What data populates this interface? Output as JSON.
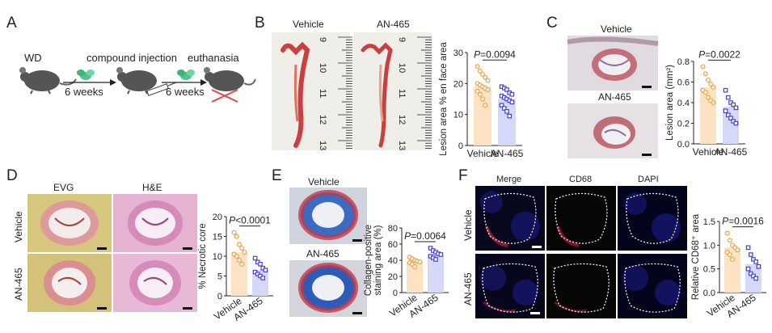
{
  "panels": {
    "A": {
      "letter": "A",
      "wd": "WD",
      "compound": "compound injection",
      "euthanasia": "euthanasia",
      "weeks1": "6 weeks",
      "weeks2": "6 weeks"
    },
    "B": {
      "letter": "B",
      "vehicle": "Vehicle",
      "an465": "AN-465",
      "ruler_left": [
        "9",
        "10",
        "11",
        "12",
        "13"
      ],
      "ruler_right": [
        "9",
        "10",
        "11",
        "12",
        "13"
      ]
    },
    "C": {
      "letter": "C",
      "vehicle": "Vehicle",
      "an465": "AN-465"
    },
    "D": {
      "letter": "D",
      "evg": "EVG",
      "he": "H&E",
      "vehicle": "Vehicle",
      "an465": "AN-465"
    },
    "E": {
      "letter": "E",
      "vehicle": "Vehicle",
      "an465": "AN-465"
    },
    "F": {
      "letter": "F",
      "merge": "Merge",
      "cd68": "CD68",
      "dapi": "DAPI",
      "vehicle": "Vehicle",
      "an465": "AN-465"
    }
  },
  "colors": {
    "vehicle_bar": "#fde3c4",
    "vehicle_point": "#f0a040",
    "an465_bar": "#d6d8fa",
    "an465_point": "#4444cc"
  },
  "chart_data": [
    {
      "id": "B",
      "type": "bar",
      "categories": [
        "Vehicle",
        "AN-465"
      ],
      "values": [
        19,
        15
      ],
      "points": [
        [
          25.5,
          24,
          23,
          22,
          21,
          20,
          19.5,
          19,
          18.5,
          18,
          17.5,
          16.5,
          15,
          13
        ],
        [
          19,
          18.5,
          18,
          17,
          16.5,
          16,
          15.5,
          15,
          14.5,
          14,
          13,
          12,
          11,
          9.5
        ]
      ],
      "ylabel": "Lesion area % en face area",
      "ylim": [
        0,
        30
      ],
      "yticks": [
        "0",
        "10",
        "20",
        "30"
      ],
      "pvalue": "P=0.0094"
    },
    {
      "id": "C",
      "type": "bar",
      "categories": [
        "Vehicle",
        "AN-465"
      ],
      "values": [
        0.55,
        0.36
      ],
      "points": [
        [
          0.75,
          0.68,
          0.62,
          0.58,
          0.55,
          0.52,
          0.5,
          0.45,
          0.42,
          0.4
        ],
        [
          0.52,
          0.45,
          0.4,
          0.38,
          0.35,
          0.32,
          0.28,
          0.25,
          0.22,
          0.2
        ]
      ],
      "ylabel": "Lesion area (mm²)",
      "ylim": [
        0,
        0.8
      ],
      "yticks": [
        "0.0",
        "0.2",
        "0.4",
        "0.6",
        "0.8"
      ],
      "pvalue": "P=0.0022"
    },
    {
      "id": "D",
      "type": "bar",
      "categories": [
        "Vehicle",
        "AN-465"
      ],
      "values": [
        11,
        6.5
      ],
      "points": [
        [
          16,
          15,
          13,
          12,
          11,
          10.5,
          10,
          9,
          8
        ],
        [
          9.5,
          8.5,
          8,
          7,
          6.5,
          6,
          5.5,
          5,
          4.5
        ]
      ],
      "ylabel": "% Necrotic core",
      "ylim": [
        0,
        20
      ],
      "yticks": [
        "0",
        "5",
        "10",
        "15",
        "20"
      ],
      "pvalue": "P<0.0001"
    },
    {
      "id": "E",
      "type": "bar",
      "categories": [
        "Vehicle",
        "AN-465"
      ],
      "values": [
        38,
        47
      ],
      "points": [
        [
          44,
          42,
          40,
          39,
          38,
          37,
          35,
          32
        ],
        [
          55,
          52,
          50,
          48,
          47,
          45,
          43,
          41
        ]
      ],
      "ylabel": "Collagen-positive staining area (%)",
      "ylabel_lines": [
        "Collagen-positive",
        "staining area (%)"
      ],
      "ylim": [
        0,
        80
      ],
      "yticks": [
        "0",
        "20",
        "40",
        "60",
        "80"
      ],
      "pvalue": "P=0.0064"
    },
    {
      "id": "F",
      "type": "bar",
      "categories": [
        "Vehicle",
        "AN-465"
      ],
      "values": [
        0.95,
        0.6
      ],
      "points": [
        [
          1.25,
          1.1,
          1.0,
          0.95,
          0.9,
          0.85,
          0.8,
          0.7
        ],
        [
          0.95,
          0.8,
          0.7,
          0.65,
          0.55,
          0.5,
          0.4,
          0.35,
          0.3
        ]
      ],
      "ylabel": "Relative CD68⁺ area",
      "ylim": [
        0,
        1.5
      ],
      "yticks": [
        "0.0",
        "0.5",
        "1.0",
        "1.5"
      ],
      "pvalue": "P=0.0016"
    }
  ]
}
